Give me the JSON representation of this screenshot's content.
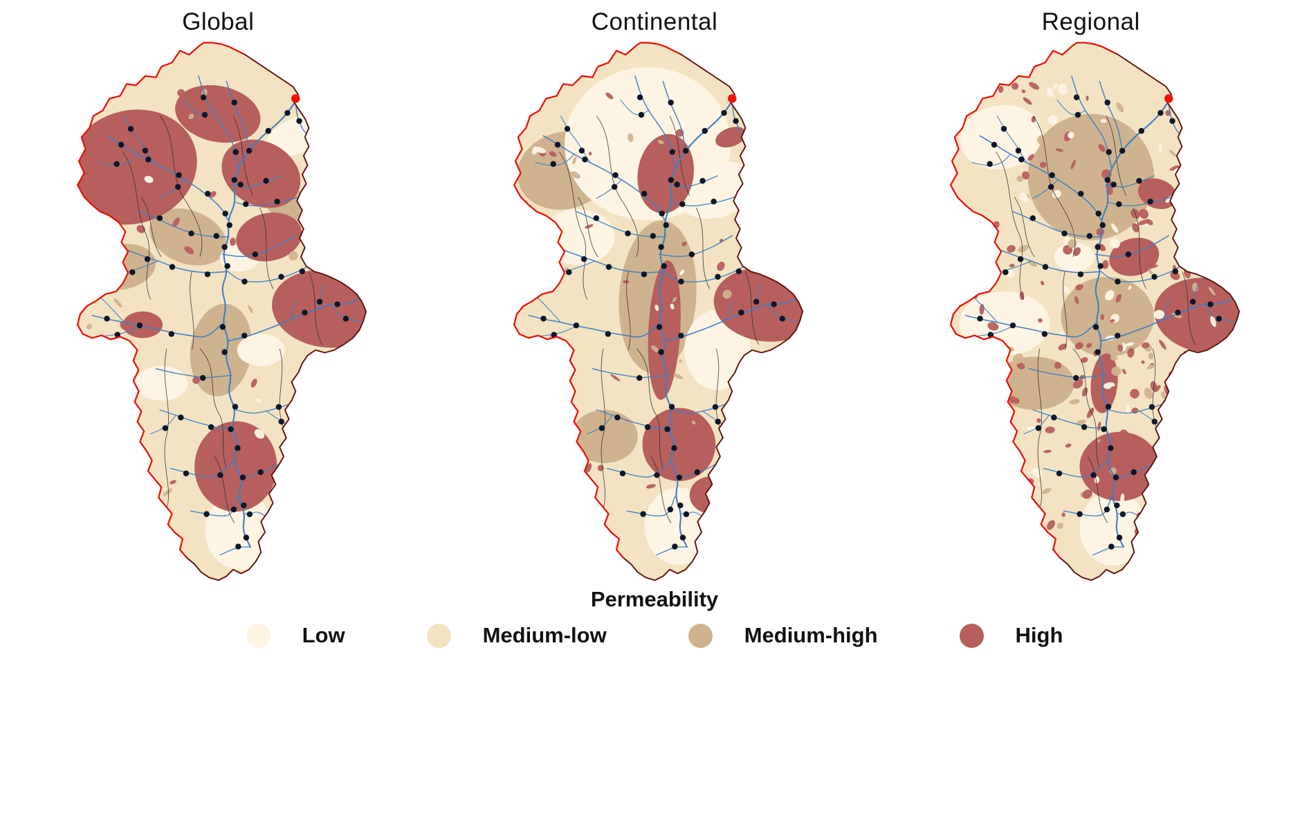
{
  "figure": {
    "panels": [
      {
        "title": "Global"
      },
      {
        "title": "Continental"
      },
      {
        "title": "Regional"
      }
    ],
    "legend": {
      "title": "Permeability",
      "items": [
        {
          "label": "Low",
          "color": "#fdf4e4"
        },
        {
          "label": "Medium-low",
          "color": "#f3e3c2"
        },
        {
          "label": "Medium-high",
          "color": "#cfb38e"
        },
        {
          "label": "High",
          "color": "#b65f5d"
        }
      ]
    },
    "map": {
      "boundary_color": "#ef1007",
      "boundary_dark_color": "#5c130e",
      "subbasin_line_color": "#2b2b2b",
      "river_color": "#3f7fc1",
      "station_dot_color": "#0e1726",
      "outlet_dot_color": "#f01208"
    }
  }
}
